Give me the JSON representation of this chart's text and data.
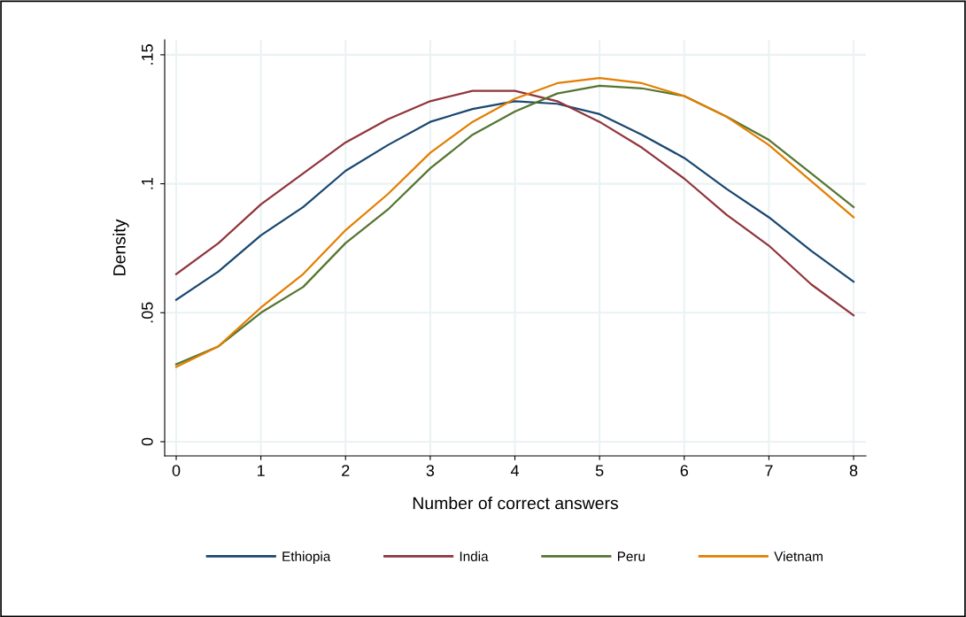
{
  "chart_data": {
    "type": "line",
    "xlabel": "Number of correct answers",
    "ylabel": "Density",
    "x": [
      0,
      0.5,
      1,
      1.5,
      2,
      2.5,
      3,
      3.5,
      4,
      4.5,
      5,
      5.5,
      6,
      6.5,
      7,
      7.5,
      8
    ],
    "series": [
      {
        "name": "Ethiopia",
        "color": "#1a476f",
        "values": [
          0.055,
          0.066,
          0.08,
          0.091,
          0.105,
          0.115,
          0.124,
          0.129,
          0.132,
          0.131,
          0.127,
          0.119,
          0.11,
          0.098,
          0.087,
          0.074,
          0.062
        ]
      },
      {
        "name": "India",
        "color": "#90353b",
        "values": [
          0.065,
          0.077,
          0.092,
          0.104,
          0.116,
          0.125,
          0.132,
          0.136,
          0.136,
          0.132,
          0.124,
          0.114,
          0.102,
          0.088,
          0.076,
          0.061,
          0.049
        ]
      },
      {
        "name": "Peru",
        "color": "#55752f",
        "values": [
          0.03,
          0.037,
          0.05,
          0.06,
          0.077,
          0.09,
          0.106,
          0.119,
          0.128,
          0.135,
          0.138,
          0.137,
          0.134,
          0.126,
          0.117,
          0.104,
          0.091
        ]
      },
      {
        "name": "Vietnam",
        "color": "#e37e00",
        "values": [
          0.029,
          0.037,
          0.052,
          0.065,
          0.082,
          0.096,
          0.112,
          0.124,
          0.133,
          0.139,
          0.141,
          0.139,
          0.134,
          0.126,
          0.115,
          0.101,
          0.087
        ]
      }
    ],
    "xlim": [
      -0.136,
      8.146
    ],
    "xticks": [
      0,
      1,
      2,
      3,
      4,
      5,
      6,
      7,
      8
    ],
    "ylim": [
      -0.0055,
      0.1558
    ],
    "yticks": [
      {
        "value": 0,
        "label": "0"
      },
      {
        "value": 0.05,
        "label": ".05"
      },
      {
        "value": 0.1,
        "label": ".1"
      },
      {
        "value": 0.15,
        "label": ".15"
      }
    ],
    "grid": true,
    "legend": "bottom"
  }
}
